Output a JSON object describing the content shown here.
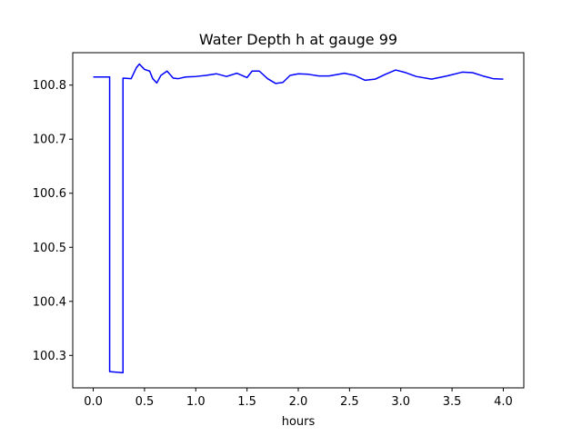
{
  "chart_data": {
    "type": "line",
    "title": "Water Depth h at gauge 99",
    "xlabel": "hours",
    "ylabel": "",
    "xlim": [
      -0.2,
      4.2
    ],
    "ylim": [
      100.24,
      100.86
    ],
    "xticks": [
      0.0,
      0.5,
      1.0,
      1.5,
      2.0,
      2.5,
      3.0,
      3.5,
      4.0
    ],
    "xtick_labels": [
      "0.0",
      "0.5",
      "1.0",
      "1.5",
      "2.0",
      "2.5",
      "3.0",
      "3.5",
      "4.0"
    ],
    "yticks": [
      100.3,
      100.4,
      100.5,
      100.6,
      100.7,
      100.8
    ],
    "ytick_labels": [
      "100.3",
      "100.4",
      "100.5",
      "100.6",
      "100.7",
      "100.8"
    ],
    "grid": false,
    "series": [
      {
        "color": "#0000ff",
        "x": [
          0.0,
          0.16,
          0.16,
          0.29,
          0.29,
          0.37,
          0.42,
          0.45,
          0.5,
          0.55,
          0.58,
          0.62,
          0.66,
          0.72,
          0.78,
          0.83,
          0.9,
          1.0,
          1.1,
          1.2,
          1.3,
          1.4,
          1.5,
          1.55,
          1.62,
          1.7,
          1.78,
          1.85,
          1.92,
          2.0,
          2.1,
          2.2,
          2.3,
          2.45,
          2.55,
          2.65,
          2.75,
          2.85,
          2.95,
          3.05,
          3.15,
          3.3,
          3.45,
          3.6,
          3.7,
          3.8,
          3.9,
          4.0
        ],
        "y": [
          100.815,
          100.815,
          100.27,
          100.268,
          100.813,
          100.812,
          100.832,
          100.839,
          100.829,
          100.826,
          100.812,
          100.804,
          100.818,
          100.826,
          100.813,
          100.812,
          100.815,
          100.816,
          100.818,
          100.821,
          100.816,
          100.822,
          100.814,
          100.826,
          100.826,
          100.812,
          100.803,
          100.805,
          100.818,
          100.821,
          100.82,
          100.817,
          100.817,
          100.822,
          100.818,
          100.809,
          100.811,
          100.82,
          100.828,
          100.823,
          100.816,
          100.811,
          100.817,
          100.824,
          100.823,
          100.817,
          100.812,
          100.811
        ]
      }
    ]
  }
}
